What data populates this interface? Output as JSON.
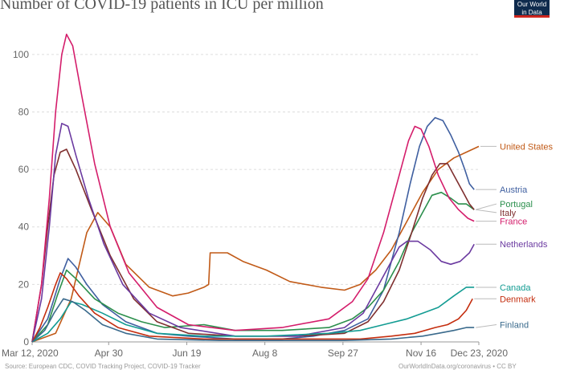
{
  "title": "Number of COVID-19 patients in ICU per million",
  "logo_line1": "Our World",
  "logo_line2": "in Data",
  "source_left": "Source: European CDC, COVID Tracking Project, COVID-19 Tracker",
  "source_right": "OurWorldInData.org/coronavirus • CC BY",
  "chart_data": {
    "type": "line",
    "title": "Number of COVID-19 patients in ICU per million",
    "xlabel": "",
    "ylabel": "",
    "x_domain": [
      0,
      286
    ],
    "ylim": [
      0,
      110
    ],
    "y_ticks": [
      0,
      20,
      40,
      60,
      80,
      100
    ],
    "x_ticks": [
      {
        "day": 0,
        "label": "Mar 12, 2020"
      },
      {
        "day": 49,
        "label": "Apr 30"
      },
      {
        "day": 99,
        "label": "Jun 19"
      },
      {
        "day": 149,
        "label": "Aug 8"
      },
      {
        "day": 199,
        "label": "Sep 27"
      },
      {
        "day": 249,
        "label": "Nov 16"
      },
      {
        "day": 286,
        "label": "Dec 23, 2020"
      }
    ],
    "grid": true,
    "x_units": "days since Mar 12, 2020",
    "series": [
      {
        "name": "United States",
        "color": "#c15a17",
        "label_y": 68,
        "points": [
          [
            0,
            0
          ],
          [
            15,
            3
          ],
          [
            25,
            15
          ],
          [
            35,
            38
          ],
          [
            42,
            45
          ],
          [
            50,
            40
          ],
          [
            60,
            27
          ],
          [
            75,
            19
          ],
          [
            90,
            16
          ],
          [
            100,
            17
          ],
          [
            110,
            19
          ],
          [
            113,
            20
          ],
          [
            114,
            31
          ],
          [
            125,
            31
          ],
          [
            135,
            28
          ],
          [
            150,
            25
          ],
          [
            165,
            21
          ],
          [
            185,
            19
          ],
          [
            200,
            18
          ],
          [
            210,
            20
          ],
          [
            220,
            25
          ],
          [
            230,
            32
          ],
          [
            240,
            42
          ],
          [
            250,
            52
          ],
          [
            260,
            60
          ],
          [
            270,
            64
          ],
          [
            278,
            66
          ],
          [
            282,
            67
          ],
          [
            286,
            68
          ]
        ]
      },
      {
        "name": "Austria",
        "color": "#3f5fa0",
        "label_y": 53,
        "points": [
          [
            0,
            0
          ],
          [
            10,
            8
          ],
          [
            18,
            22
          ],
          [
            23,
            29
          ],
          [
            28,
            26
          ],
          [
            35,
            20
          ],
          [
            45,
            13
          ],
          [
            60,
            7
          ],
          [
            80,
            3
          ],
          [
            100,
            2
          ],
          [
            130,
            1
          ],
          [
            160,
            1
          ],
          [
            180,
            2
          ],
          [
            200,
            4
          ],
          [
            215,
            8
          ],
          [
            225,
            18
          ],
          [
            235,
            38
          ],
          [
            242,
            55
          ],
          [
            248,
            68
          ],
          [
            253,
            75
          ],
          [
            258,
            78
          ],
          [
            263,
            77
          ],
          [
            268,
            72
          ],
          [
            273,
            66
          ],
          [
            277,
            60
          ],
          [
            280,
            55
          ],
          [
            283,
            53
          ]
        ]
      },
      {
        "name": "Portugal",
        "color": "#2b8f4c",
        "label_y": 48,
        "points": [
          [
            0,
            0
          ],
          [
            10,
            6
          ],
          [
            16,
            16
          ],
          [
            22,
            25
          ],
          [
            28,
            22
          ],
          [
            40,
            15
          ],
          [
            55,
            10
          ],
          [
            70,
            7
          ],
          [
            85,
            5
          ],
          [
            110,
            6
          ],
          [
            130,
            4
          ],
          [
            160,
            4
          ],
          [
            190,
            5
          ],
          [
            205,
            8
          ],
          [
            215,
            12
          ],
          [
            225,
            18
          ],
          [
            235,
            28
          ],
          [
            243,
            38
          ],
          [
            250,
            45
          ],
          [
            256,
            51
          ],
          [
            262,
            52
          ],
          [
            268,
            50
          ],
          [
            273,
            48
          ],
          [
            278,
            48
          ],
          [
            283,
            46
          ]
        ]
      },
      {
        "name": "Italy",
        "color": "#7f2f2f",
        "label_y": 45,
        "points": [
          [
            0,
            0
          ],
          [
            6,
            20
          ],
          [
            10,
            40
          ],
          [
            14,
            58
          ],
          [
            18,
            66
          ],
          [
            22,
            67
          ],
          [
            28,
            60
          ],
          [
            38,
            46
          ],
          [
            50,
            30
          ],
          [
            65,
            15
          ],
          [
            80,
            7
          ],
          [
            100,
            3
          ],
          [
            130,
            2
          ],
          [
            170,
            2
          ],
          [
            200,
            3
          ],
          [
            215,
            7
          ],
          [
            225,
            14
          ],
          [
            235,
            25
          ],
          [
            243,
            38
          ],
          [
            250,
            50
          ],
          [
            256,
            58
          ],
          [
            261,
            62
          ],
          [
            266,
            62
          ],
          [
            271,
            57
          ],
          [
            276,
            52
          ],
          [
            280,
            48
          ],
          [
            283,
            46
          ]
        ]
      },
      {
        "name": "France",
        "color": "#d41d6b",
        "label_y": 42,
        "points": [
          [
            0,
            0
          ],
          [
            6,
            20
          ],
          [
            11,
            50
          ],
          [
            15,
            80
          ],
          [
            19,
            100
          ],
          [
            22,
            107
          ],
          [
            26,
            103
          ],
          [
            32,
            85
          ],
          [
            40,
            62
          ],
          [
            50,
            40
          ],
          [
            62,
            24
          ],
          [
            80,
            12
          ],
          [
            100,
            6
          ],
          [
            130,
            4
          ],
          [
            160,
            5
          ],
          [
            190,
            8
          ],
          [
            205,
            14
          ],
          [
            215,
            22
          ],
          [
            225,
            38
          ],
          [
            235,
            58
          ],
          [
            241,
            70
          ],
          [
            245,
            75
          ],
          [
            249,
            74
          ],
          [
            254,
            68
          ],
          [
            260,
            58
          ],
          [
            267,
            50
          ],
          [
            273,
            46
          ],
          [
            279,
            43
          ],
          [
            283,
            42
          ]
        ]
      },
      {
        "name": "Netherlands",
        "color": "#6b3aa0",
        "label_y": 34,
        "points": [
          [
            0,
            0
          ],
          [
            6,
            15
          ],
          [
            11,
            40
          ],
          [
            15,
            65
          ],
          [
            19,
            76
          ],
          [
            23,
            75
          ],
          [
            28,
            65
          ],
          [
            36,
            50
          ],
          [
            46,
            34
          ],
          [
            58,
            20
          ],
          [
            75,
            10
          ],
          [
            95,
            5
          ],
          [
            130,
            2
          ],
          [
            170,
            2
          ],
          [
            200,
            5
          ],
          [
            212,
            10
          ],
          [
            220,
            18
          ],
          [
            228,
            26
          ],
          [
            235,
            33
          ],
          [
            240,
            35
          ],
          [
            247,
            35
          ],
          [
            255,
            32
          ],
          [
            262,
            28
          ],
          [
            268,
            27
          ],
          [
            274,
            28
          ],
          [
            280,
            31
          ],
          [
            283,
            34
          ]
        ]
      },
      {
        "name": "Canada",
        "color": "#139c93",
        "label_y": 19,
        "points": [
          [
            0,
            0
          ],
          [
            10,
            3
          ],
          [
            18,
            8
          ],
          [
            25,
            14
          ],
          [
            32,
            13
          ],
          [
            45,
            10
          ],
          [
            60,
            6
          ],
          [
            80,
            3
          ],
          [
            110,
            2
          ],
          [
            150,
            2
          ],
          [
            190,
            3
          ],
          [
            210,
            4
          ],
          [
            225,
            6
          ],
          [
            240,
            8
          ],
          [
            250,
            10
          ],
          [
            260,
            12
          ],
          [
            270,
            16
          ],
          [
            278,
            19
          ],
          [
            283,
            19
          ]
        ]
      },
      {
        "name": "Denmark",
        "color": "#c42d0e",
        "label_y": 15,
        "points": [
          [
            0,
            0
          ],
          [
            5,
            5
          ],
          [
            10,
            12
          ],
          [
            15,
            20
          ],
          [
            18,
            24
          ],
          [
            22,
            22
          ],
          [
            30,
            16
          ],
          [
            40,
            10
          ],
          [
            55,
            5
          ],
          [
            75,
            2
          ],
          [
            110,
            1
          ],
          [
            160,
            1
          ],
          [
            210,
            1
          ],
          [
            230,
            2
          ],
          [
            245,
            3
          ],
          [
            258,
            5
          ],
          [
            266,
            6
          ],
          [
            273,
            8
          ],
          [
            278,
            11
          ],
          [
            282,
            15
          ]
        ]
      },
      {
        "name": "Finland",
        "color": "#3a6a8c",
        "label_y": 6,
        "points": [
          [
            0,
            0
          ],
          [
            8,
            4
          ],
          [
            14,
            10
          ],
          [
            20,
            15
          ],
          [
            26,
            14
          ],
          [
            34,
            11
          ],
          [
            45,
            6
          ],
          [
            60,
            3
          ],
          [
            80,
            1
          ],
          [
            120,
            0.5
          ],
          [
            160,
            0.5
          ],
          [
            200,
            0.5
          ],
          [
            230,
            1
          ],
          [
            250,
            2
          ],
          [
            260,
            3
          ],
          [
            270,
            4
          ],
          [
            278,
            5
          ],
          [
            283,
            5
          ]
        ]
      }
    ]
  }
}
